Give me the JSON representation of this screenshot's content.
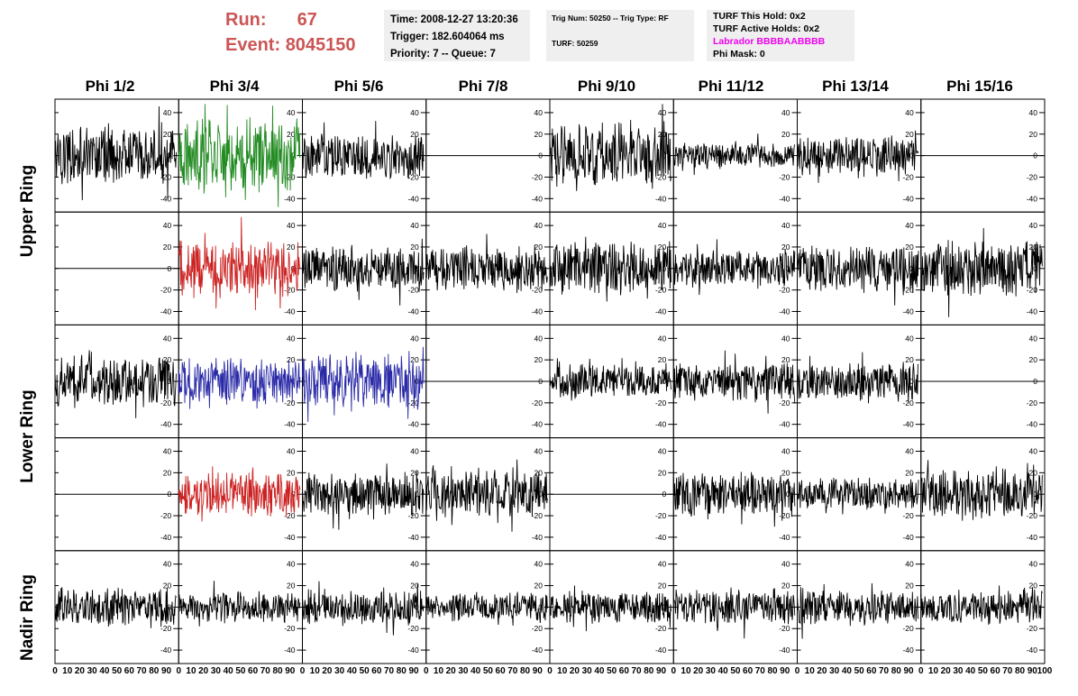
{
  "run": {
    "label": "Run:",
    "value": "67"
  },
  "event": {
    "label": "Event:",
    "value": "8045150"
  },
  "info1": {
    "time": "Time: 2008-12-27 13:20:36",
    "trigger": "Trigger: 182.604064 ms",
    "priority": "Priority: 7 -- Queue: 7"
  },
  "info2": {
    "trig": "Trig Num: 50250 -- Trig Type: RF",
    "turf": "TURF: 50259"
  },
  "info3": {
    "this_hold": "TURF This Hold: 0x2",
    "active_holds": "TURF Active Holds: 0x2",
    "labrador": "Labrador BBBBAABBBB",
    "phi_mask": "Phi Mask: 0"
  },
  "colors": {
    "black": "#000000",
    "green": "#228b22",
    "red": "#cc2222",
    "blue": "#2a2aa8",
    "magenta": "#ee00ee",
    "run_text": "#cc5555"
  },
  "chart_data": {
    "type": "line",
    "phi_headers": [
      "Phi 1/2",
      "Phi 3/4",
      "Phi 5/6",
      "Phi 7/8",
      "Phi 9/10",
      "Phi 11/12",
      "Phi 13/14",
      "Phi 15/16"
    ],
    "ring_labels": [
      "Upper Ring",
      "Lower Ring",
      "Nadir Ring"
    ],
    "xlim": [
      0,
      100
    ],
    "ylim": [
      -50,
      50
    ],
    "y_ticks": [
      -40,
      -20,
      0,
      20,
      40
    ],
    "x_ticks": [
      0,
      10,
      20,
      30,
      40,
      50,
      60,
      70,
      80,
      90,
      100
    ],
    "traces": [
      [
        "black",
        "green",
        "black",
        "flat",
        "black",
        "black",
        "black",
        "flat"
      ],
      [
        "flat",
        "red",
        "black",
        "black",
        "black",
        "black",
        "black",
        "black"
      ],
      [
        "black",
        "blue",
        "blue",
        "flat",
        "black",
        "black",
        "black",
        "flat"
      ],
      [
        "flat",
        "red",
        "black",
        "black",
        "flat",
        "black",
        "black",
        "black"
      ],
      [
        "black",
        "black",
        "black",
        "black",
        "black",
        "black",
        "black",
        "black"
      ]
    ],
    "amplitudes": [
      [
        22,
        28,
        18,
        0,
        26,
        10,
        16,
        0
      ],
      [
        0,
        22,
        18,
        18,
        20,
        14,
        18,
        22
      ],
      [
        20,
        18,
        22,
        0,
        14,
        16,
        15,
        0
      ],
      [
        0,
        18,
        17,
        18,
        0,
        17,
        12,
        20
      ],
      [
        16,
        12,
        14,
        11,
        12,
        14,
        14,
        13
      ]
    ]
  }
}
